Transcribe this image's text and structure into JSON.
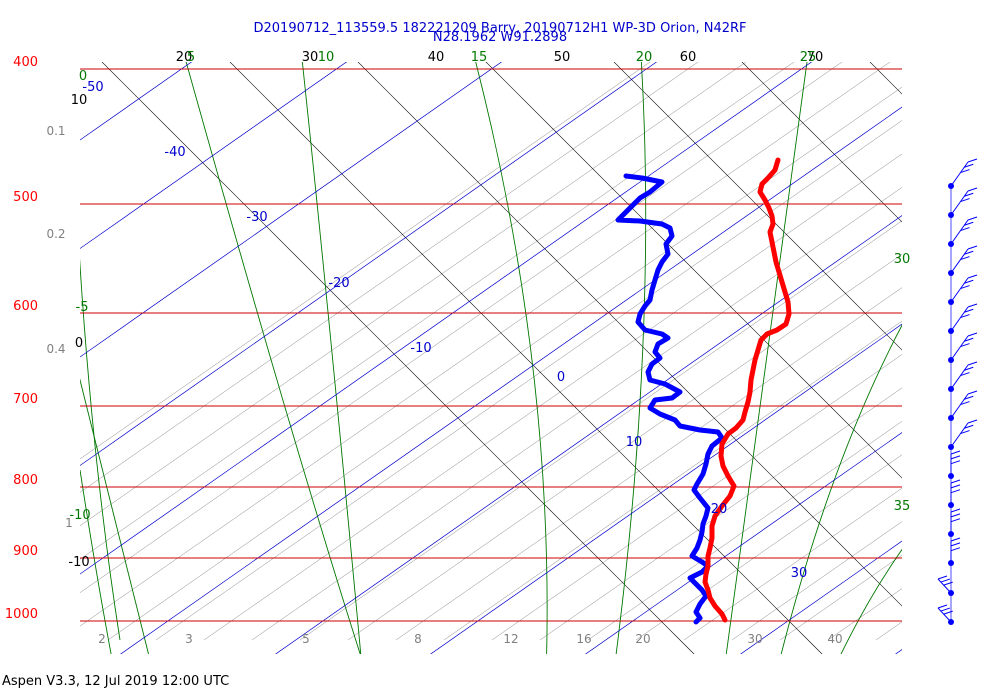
{
  "chart_data": {
    "type": "line",
    "title": "D20190712_113559.5 182221209 Barry, 20190712H1 WP-3D Orion, N42RF",
    "subtitle": "N28.1962 W91.2898",
    "footer": "Aspen V3.3, 12 Jul 2019  12:00 UTC",
    "pressure_levels": [
      400,
      500,
      600,
      700,
      800,
      900,
      1000
    ],
    "theta_labels": [
      "20",
      "30",
      "40",
      "50",
      "60",
      "70"
    ],
    "theta_e_top_labels": [
      "5",
      "10",
      "15",
      "20",
      "25"
    ],
    "theta_e_right_labels": [
      "30",
      "35"
    ],
    "theta_e_left_labels": [
      "0",
      "-5",
      "-10"
    ],
    "left_black_labels": [
      "10",
      "0",
      "-10"
    ],
    "mixing_ratio_left_labels": [
      "0.1",
      "0.2",
      "0.4",
      "1"
    ],
    "mixing_ratio_bottom_labels": [
      "2",
      "3",
      "5",
      "8",
      "12",
      "16",
      "20",
      "30",
      "40"
    ],
    "isotherm_labels": [
      "-50",
      "-40",
      "-30",
      "-20",
      "-10",
      "0",
      "10",
      "20",
      "30"
    ],
    "series": [
      {
        "name": "Temperature",
        "color": "#ff0000"
      },
      {
        "name": "Dewpoint",
        "color": "#0000ff"
      }
    ],
    "colors": {
      "isobar": "#cc0000",
      "isotherm": "#0000cc",
      "dry_adiabat": "#000000",
      "moist_adiabat": "#007700",
      "mixing_ratio": "#888888",
      "wind": "#0000ff"
    }
  }
}
